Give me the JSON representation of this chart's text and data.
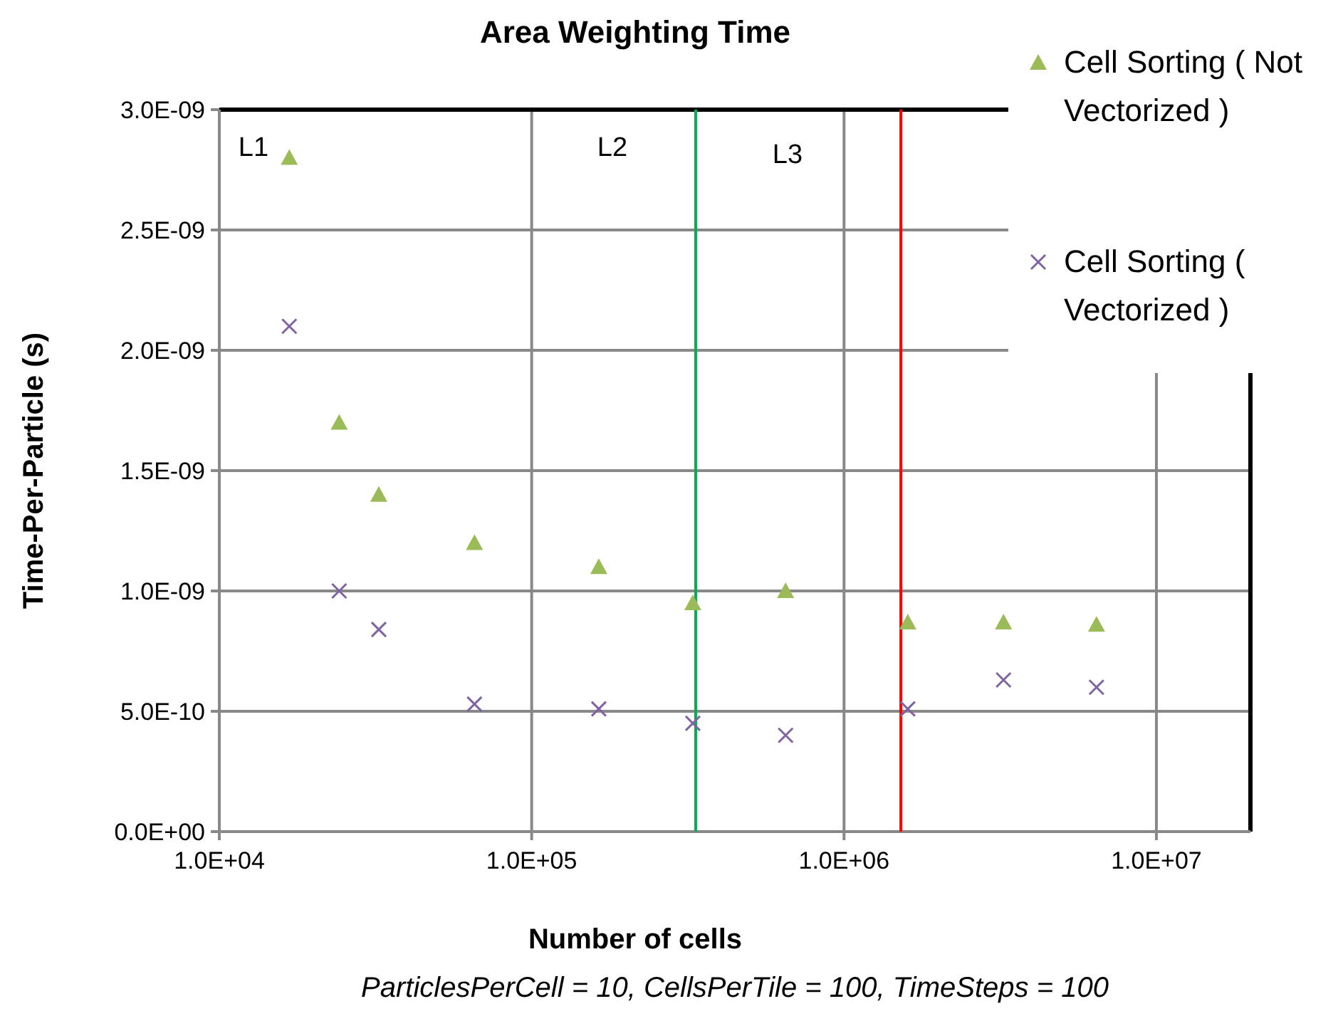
{
  "chart_data": {
    "type": "scatter",
    "title": "Area Weighting Time",
    "xlabel": "Number of cells",
    "ylabel": "Time-Per-Particle (s)",
    "log": "x",
    "grid": true,
    "legend": "top right",
    "xlim": [
      10000,
      20000000
    ],
    "xticks": [
      {
        "value": 10000,
        "label": "1.0E+04"
      },
      {
        "value": 100000,
        "label": "1.0E+05"
      },
      {
        "value": 1000000,
        "label": "1.0E+06"
      },
      {
        "value": 10000000,
        "label": "1.0E+07"
      }
    ],
    "ylim": [
      0,
      3e-09
    ],
    "yticks": [
      {
        "value": 0,
        "label": "0.0E+00"
      },
      {
        "value": 5e-10,
        "label": "5.0E-10"
      },
      {
        "value": 1e-09,
        "label": "1.0E-09"
      },
      {
        "value": 1.5e-09,
        "label": "1.5E-09"
      },
      {
        "value": 2e-09,
        "label": "2.0E-09"
      },
      {
        "value": 2.5e-09,
        "label": "2.5E-09"
      },
      {
        "value": 3e-09,
        "label": "3.0E-09"
      }
    ],
    "x": [
      16750,
      24200,
      32400,
      65600,
      164000,
      328000,
      650000,
      1600000,
      3240000,
      6430000
    ],
    "series": [
      {
        "name": "Cell Sorting ( Not Vectorized )",
        "color": "#9bbb59",
        "marker": "triangle",
        "values": [
          2.8e-09,
          1.7e-09,
          1.4e-09,
          1.2e-09,
          1.1e-09,
          9.5e-10,
          1e-09,
          8.7e-10,
          8.7e-10,
          8.6e-10
        ]
      },
      {
        "name": "Cell Sorting ( Vectorized )",
        "color": "#8064a2",
        "marker": "cross",
        "values": [
          2.1e-09,
          1e-09,
          8.4e-10,
          5.3e-10,
          5.1e-10,
          4.5e-10,
          4e-10,
          5.1e-10,
          6.3e-10,
          6e-10
        ]
      }
    ],
    "ref_lines": [
      {
        "axis": "x",
        "value": 335000,
        "color": "#00b050"
      },
      {
        "axis": "x",
        "value": 1520000,
        "color": "#ff0000"
      }
    ],
    "annotations": [
      "L1",
      "L2",
      "L3",
      "ParticlesPerCell = 10, CellsPerTile = 100, TimeSteps = 100"
    ]
  }
}
